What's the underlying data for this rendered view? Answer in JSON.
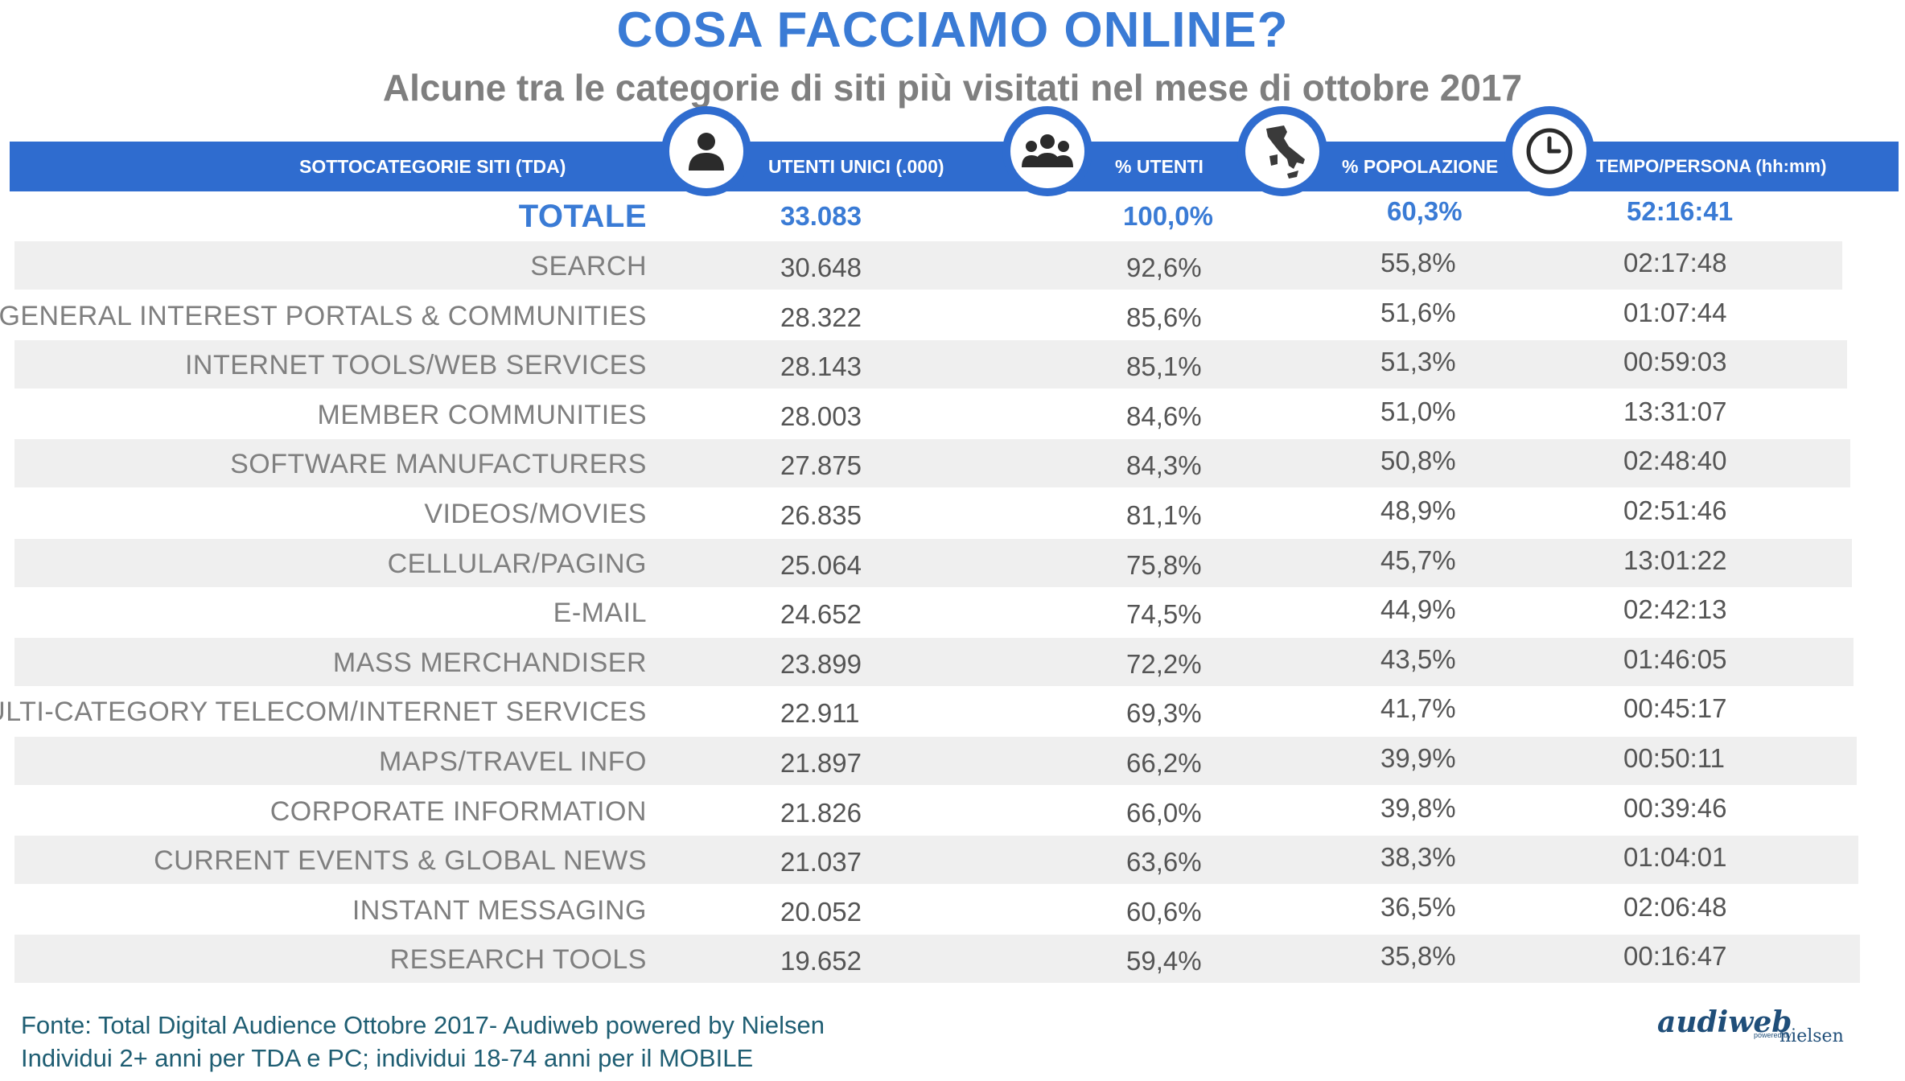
{
  "title": "COSA FACCIAMO ONLINE?",
  "subtitle": "Alcune tra le categorie di siti più visitati nel mese di ottobre 2017",
  "header": {
    "category": "SOTTOCATEGORIE SITI  (TDA)",
    "users": "UTENTI UNICI (.000)",
    "pct_users": "% UTENTI",
    "pct_population": "% POPOLAZIONE",
    "time": "TEMPO/PERSONA (hh:mm)"
  },
  "icons": [
    "person-icon",
    "group-icon",
    "italy-map-icon",
    "clock-icon"
  ],
  "colors": {
    "accent": "#2f6ccf",
    "title": "#3a7bd5",
    "stripe": "#efefef",
    "footer": "#1f5e73"
  },
  "total": {
    "label": "TOTALE",
    "users": "33.083",
    "pct_users": "100,0%",
    "pct_population": "60,3%",
    "time": "52:16:41"
  },
  "rows": [
    {
      "category": "SEARCH",
      "users": "30.648",
      "pct_users": "92,6%",
      "pct_population": "55,8%",
      "time": "02:17:48"
    },
    {
      "category": "GENERAL INTEREST PORTALS & COMMUNITIES",
      "users": "28.322",
      "pct_users": "85,6%",
      "pct_population": "51,6%",
      "time": "01:07:44"
    },
    {
      "category": "INTERNET TOOLS/WEB SERVICES",
      "users": "28.143",
      "pct_users": "85,1%",
      "pct_population": "51,3%",
      "time": "00:59:03"
    },
    {
      "category": "MEMBER COMMUNITIES",
      "users": "28.003",
      "pct_users": "84,6%",
      "pct_population": "51,0%",
      "time": "13:31:07"
    },
    {
      "category": "SOFTWARE MANUFACTURERS",
      "users": "27.875",
      "pct_users": "84,3%",
      "pct_population": "50,8%",
      "time": "02:48:40"
    },
    {
      "category": "VIDEOS/MOVIES",
      "users": "26.835",
      "pct_users": "81,1%",
      "pct_population": "48,9%",
      "time": "02:51:46"
    },
    {
      "category": "CELLULAR/PAGING",
      "users": "25.064",
      "pct_users": "75,8%",
      "pct_population": "45,7%",
      "time": "13:01:22"
    },
    {
      "category": "E-MAIL",
      "users": "24.652",
      "pct_users": "74,5%",
      "pct_population": "44,9%",
      "time": "02:42:13"
    },
    {
      "category": "MASS MERCHANDISER",
      "users": "23.899",
      "pct_users": "72,2%",
      "pct_population": "43,5%",
      "time": "01:46:05"
    },
    {
      "category": "MULTI-CATEGORY TELECOM/INTERNET SERVICES",
      "users": "22.911",
      "pct_users": "69,3%",
      "pct_population": "41,7%",
      "time": "00:45:17"
    },
    {
      "category": "MAPS/TRAVEL INFO",
      "users": "21.897",
      "pct_users": "66,2%",
      "pct_population": "39,9%",
      "time": "00:50:11"
    },
    {
      "category": "CORPORATE INFORMATION",
      "users": "21.826",
      "pct_users": "66,0%",
      "pct_population": "39,8%",
      "time": "00:39:46"
    },
    {
      "category": "CURRENT EVENTS & GLOBAL NEWS",
      "users": "21.037",
      "pct_users": "63,6%",
      "pct_population": "38,3%",
      "time": "01:04:01"
    },
    {
      "category": "INSTANT MESSAGING",
      "users": "20.052",
      "pct_users": "60,6%",
      "pct_population": "36,5%",
      "time": "02:06:48"
    },
    {
      "category": "RESEARCH TOOLS",
      "users": "19.652",
      "pct_users": "59,4%",
      "pct_population": "35,8%",
      "time": "00:16:47"
    }
  ],
  "footer": {
    "line1": "Fonte: Total Digital Audience Ottobre 2017- Audiweb powered by Nielsen",
    "line2": "Individui 2+ anni per TDA e PC; individui 18-74 anni per il MOBILE"
  },
  "logo": {
    "name": "audiweb",
    "powered": "powered by",
    "partner": "nielsen"
  }
}
